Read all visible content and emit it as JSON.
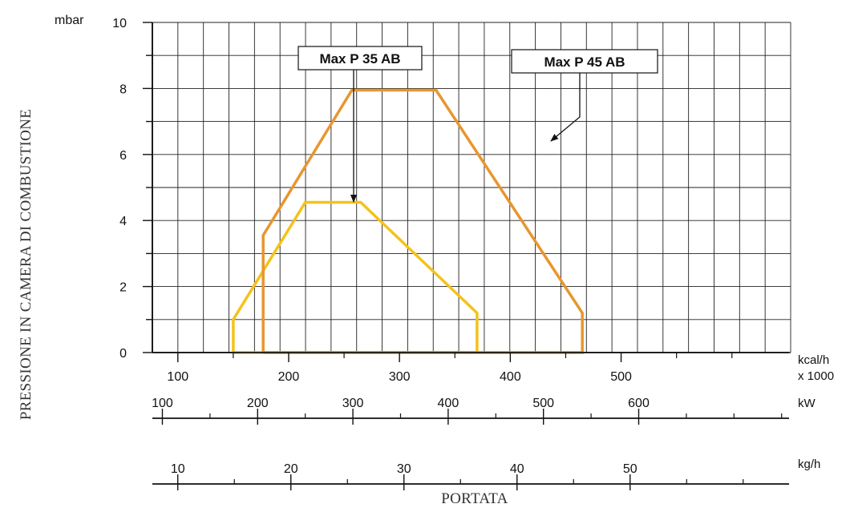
{
  "chart_data": {
    "type": "line",
    "y_axis": {
      "label": "PRESSIONE IN CAMERA DI COMBUSTIONE",
      "unit": "mbar",
      "range": [
        0,
        10
      ],
      "ticks": [
        0,
        2,
        4,
        6,
        8,
        10
      ],
      "minor_step": 1
    },
    "x_title": "PORTATA",
    "x_axes": [
      {
        "id": "kcal",
        "unit_lines": [
          "kcal/h",
          "x 1000"
        ],
        "range": [
          77,
          653
        ],
        "ticks": [
          100,
          200,
          300,
          400,
          500
        ],
        "minor": [
          150,
          250,
          350,
          450,
          550,
          600
        ]
      },
      {
        "id": "kw",
        "unit_lines": [
          "kW"
        ],
        "range": [
          89.5,
          759.5
        ],
        "ticks": [
          100,
          200,
          300,
          400,
          500,
          600
        ],
        "minor": [
          150,
          250,
          350,
          450,
          550,
          650,
          700,
          750
        ]
      },
      {
        "id": "kgh",
        "unit_lines": [
          "kg/h"
        ],
        "range": [
          7.75,
          64.2
        ],
        "ticks": [
          10,
          20,
          30,
          40,
          50
        ],
        "minor": [
          15,
          25,
          35,
          45,
          55,
          60
        ]
      }
    ],
    "grid": true,
    "series": [
      {
        "name": "Max P 35 AB",
        "color": "#f5c21b",
        "points": [
          [
            150,
            0
          ],
          [
            150,
            1
          ],
          [
            215,
            4.55
          ],
          [
            265,
            4.55
          ],
          [
            370,
            1.2
          ],
          [
            370,
            0
          ],
          [
            150,
            0
          ]
        ]
      },
      {
        "name": "Max P 45 AB",
        "color": "#e8962e",
        "points": [
          [
            177,
            0
          ],
          [
            177,
            3.55
          ],
          [
            257,
            7.95
          ],
          [
            333,
            7.95
          ],
          [
            465,
            1.2
          ],
          [
            465,
            0
          ],
          [
            177,
            0
          ]
        ]
      }
    ],
    "annotations": [
      {
        "text": "Max P 35 AB",
        "target_series": 0,
        "target": [
          221,
          4.6
        ]
      },
      {
        "text": "Max P 45 AB",
        "target_series": 1,
        "target": [
          410,
          6.3
        ]
      }
    ]
  }
}
